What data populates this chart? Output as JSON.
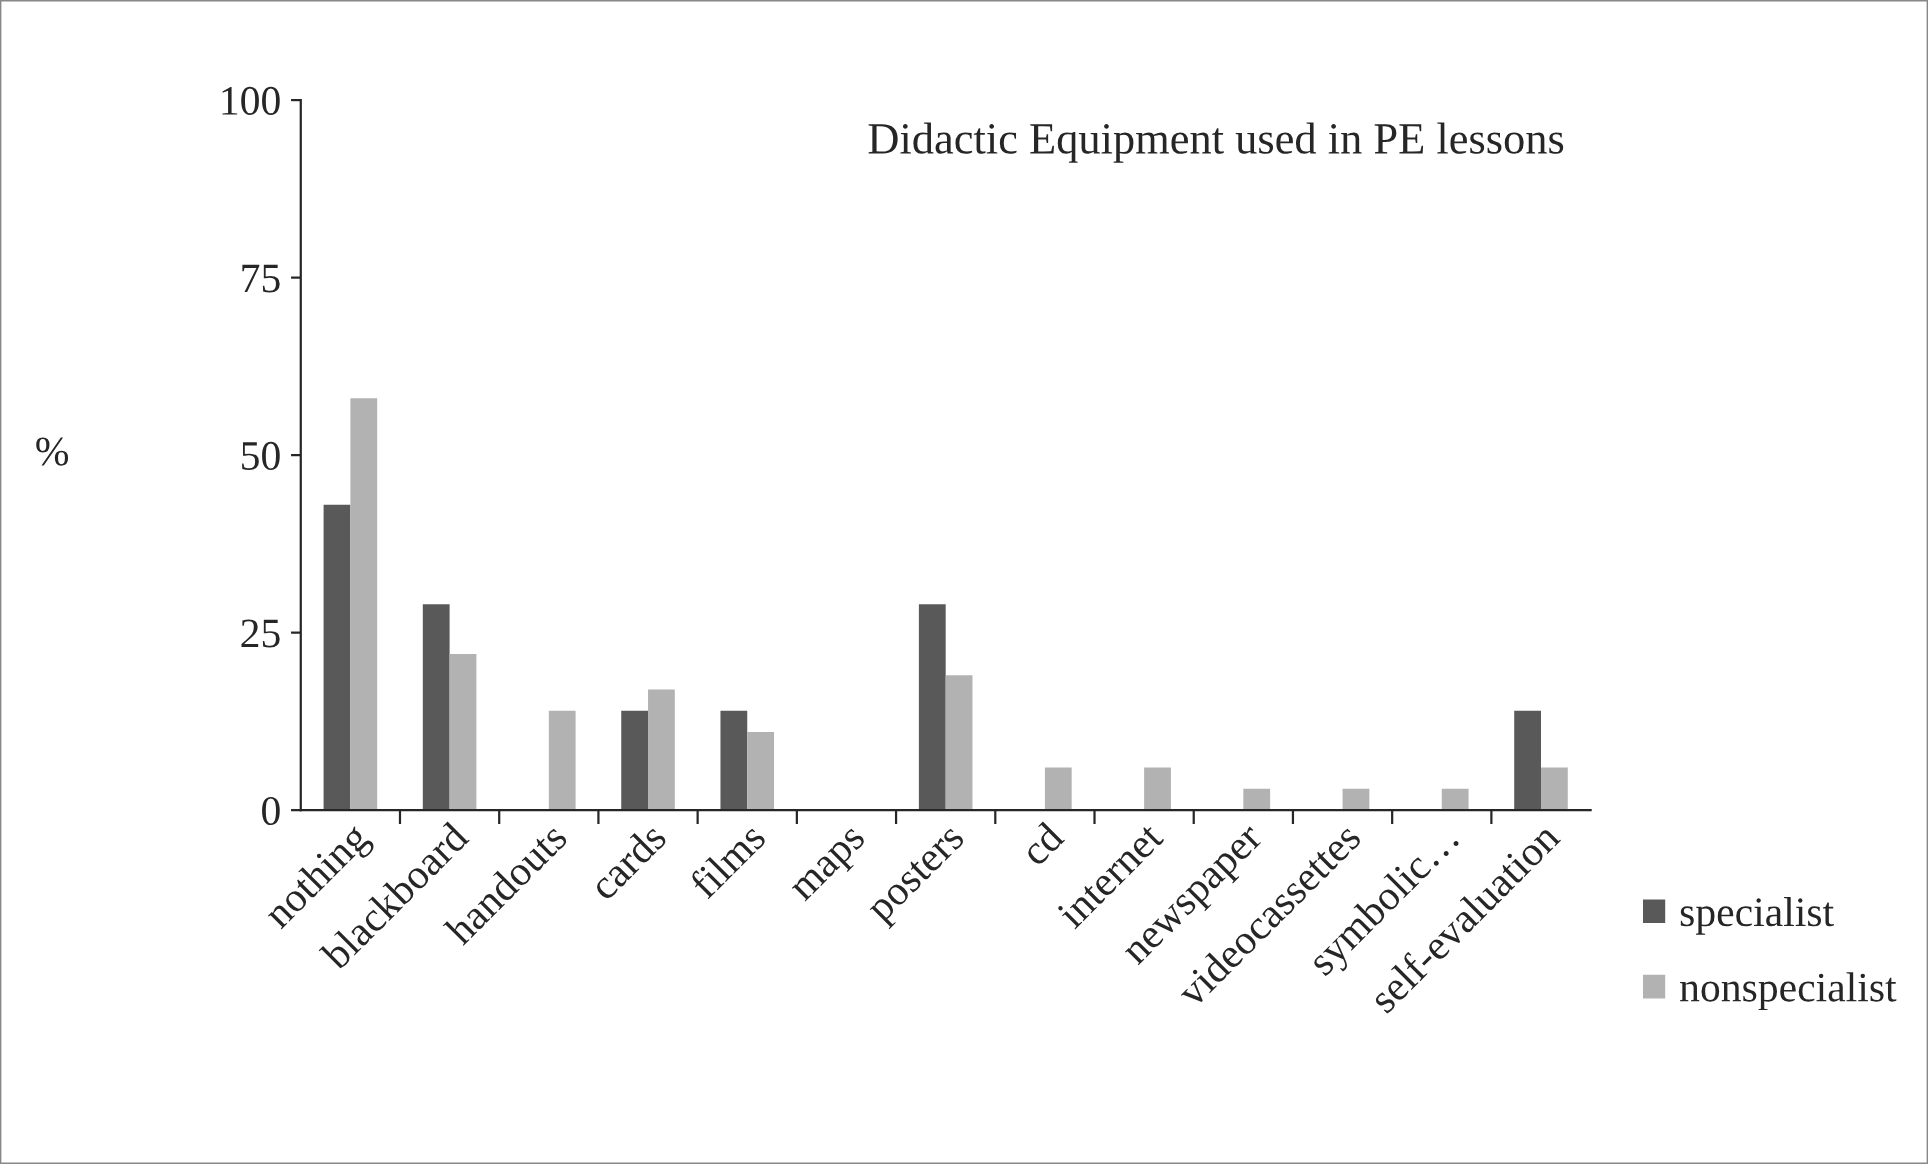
{
  "chart_data": {
    "type": "bar",
    "title": "Didactic Equipment used in PE lessons",
    "ylabel": "%",
    "categories": [
      "nothing",
      "blackboard",
      "handouts",
      "cards",
      "films",
      "maps",
      "posters",
      "cd",
      "internet",
      "newspaper",
      "videocassettes",
      "symbolic…",
      "self-evaluation"
    ],
    "series": [
      {
        "name": "specialist",
        "color": "#595959",
        "values": [
          43,
          29,
          0,
          14,
          14,
          0,
          29,
          0,
          0,
          0,
          0,
          0,
          14
        ]
      },
      {
        "name": "nonspecialist",
        "color": "#b2b2b2",
        "values": [
          58,
          22,
          14,
          17,
          11,
          0,
          19,
          6,
          6,
          3,
          3,
          3,
          6
        ]
      }
    ],
    "ylim": [
      0,
      100
    ],
    "yticks": [
      0,
      25,
      50,
      75,
      100
    ],
    "grid": false,
    "legend": "bottom right"
  }
}
